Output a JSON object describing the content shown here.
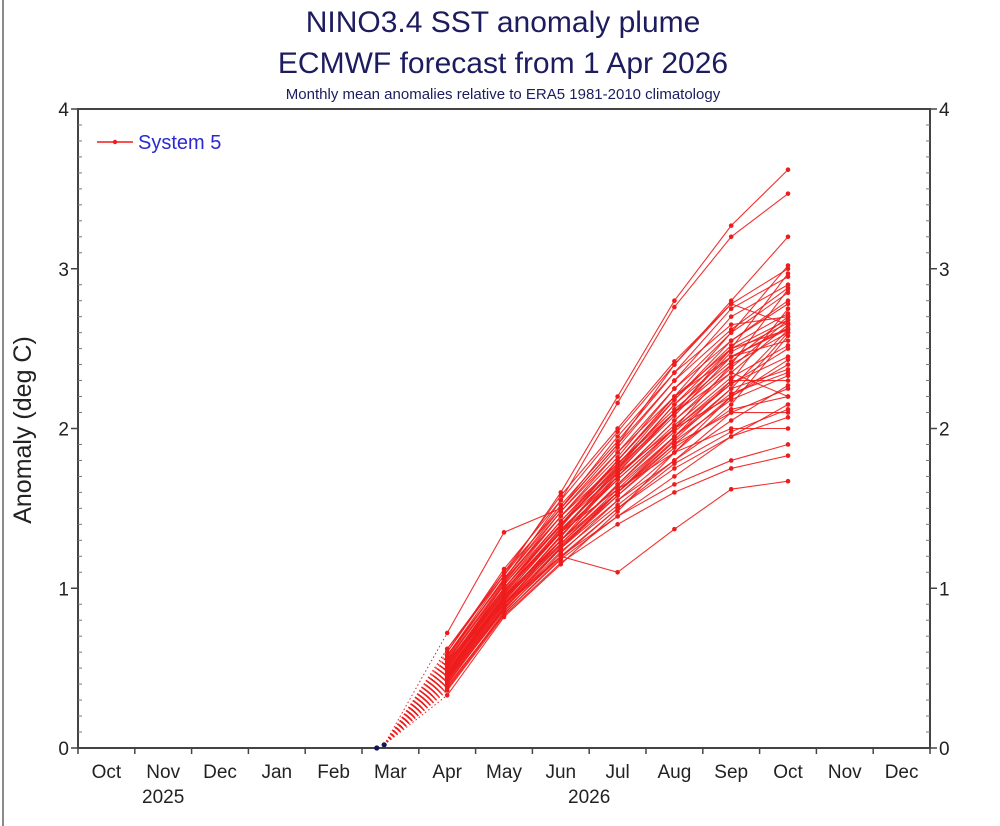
{
  "chart_data": {
    "type": "line",
    "title": "NINO3.4 SST anomaly plume",
    "subtitle": "ECMWF forecast from 1 Apr 2026",
    "note": "Monthly mean anomalies relative to ERA5 1981-2010 climatology",
    "xlabel": "",
    "ylabel": "Anomaly (deg C)",
    "ylim": [
      0,
      4
    ],
    "yticks": [
      "0",
      "1",
      "2",
      "3",
      "4"
    ],
    "months": [
      "Oct",
      "Nov",
      "Dec",
      "Jan",
      "Feb",
      "Mar",
      "Apr",
      "May",
      "Jun",
      "Jul",
      "Aug",
      "Sep",
      "Oct",
      "Nov",
      "Dec"
    ],
    "years": [
      {
        "label": "2025",
        "month_index": 1
      },
      {
        "label": "2026",
        "month_index": 8.5
      }
    ],
    "legend": {
      "label": "System 5",
      "placement": "top-left"
    },
    "colors": {
      "forecast": "#ee1c1c",
      "observed": "#14145a",
      "text": "#1c1c5e",
      "legend_text": "#2a2ad0"
    },
    "observed": [
      {
        "month_index": 4.76,
        "value": 0.0
      },
      {
        "month_index": 4.89,
        "value": 0.02
      }
    ],
    "forecast_months_index": [
      6,
      7,
      8,
      9,
      10,
      11,
      12
    ],
    "series": [
      [
        0.62,
        1.08,
        1.6,
        2.2,
        2.8,
        3.27,
        3.62
      ],
      [
        0.58,
        1.05,
        1.55,
        2.16,
        2.76,
        3.2,
        3.47
      ],
      [
        0.72,
        1.35,
        1.5,
        1.9,
        2.4,
        2.8,
        3.2
      ],
      [
        0.33,
        0.82,
        1.15,
        1.48,
        1.85,
        2.2,
        2.6
      ],
      [
        0.55,
        0.9,
        1.2,
        1.1,
        1.37,
        1.62,
        1.67
      ],
      [
        0.5,
        1.0,
        1.4,
        1.8,
        2.2,
        2.6,
        3.02
      ],
      [
        0.45,
        0.95,
        1.35,
        1.75,
        2.1,
        2.5,
        2.97
      ],
      [
        0.6,
        1.1,
        1.5,
        1.9,
        2.3,
        2.7,
        2.9
      ],
      [
        0.48,
        0.92,
        1.3,
        1.65,
        2.0,
        2.4,
        2.87
      ],
      [
        0.52,
        1.02,
        1.45,
        1.85,
        2.25,
        2.55,
        2.8
      ],
      [
        0.4,
        0.88,
        1.25,
        1.6,
        1.95,
        2.3,
        2.75
      ],
      [
        0.56,
        1.06,
        1.5,
        1.95,
        2.35,
        2.65,
        2.7
      ],
      [
        0.44,
        0.9,
        1.3,
        1.7,
        2.05,
        2.35,
        2.65
      ],
      [
        0.5,
        0.98,
        1.4,
        1.75,
        2.15,
        2.45,
        2.62
      ],
      [
        0.47,
        0.94,
        1.32,
        1.72,
        2.1,
        2.4,
        2.6
      ],
      [
        0.53,
        1.0,
        1.42,
        1.8,
        2.2,
        2.5,
        2.62
      ],
      [
        0.38,
        0.85,
        1.22,
        1.55,
        1.85,
        2.15,
        2.58
      ],
      [
        0.6,
        1.12,
        1.55,
        1.98,
        2.4,
        2.78,
        2.65
      ],
      [
        0.42,
        0.87,
        1.25,
        1.58,
        1.9,
        2.2,
        2.43
      ],
      [
        0.46,
        0.93,
        1.28,
        1.62,
        1.95,
        2.25,
        2.37
      ],
      [
        0.5,
        0.97,
        1.35,
        1.68,
        2.0,
        2.3,
        2.3
      ],
      [
        0.44,
        0.9,
        1.25,
        1.55,
        1.8,
        2.1,
        2.25
      ],
      [
        0.55,
        1.04,
        1.45,
        1.78,
        2.1,
        2.35,
        2.2
      ],
      [
        0.39,
        0.84,
        1.18,
        1.45,
        1.7,
        1.95,
        2.15
      ],
      [
        0.48,
        0.95,
        1.3,
        1.6,
        1.9,
        2.1,
        2.1
      ],
      [
        0.43,
        0.88,
        1.2,
        1.5,
        1.75,
        1.95,
        2.07
      ],
      [
        0.51,
        0.99,
        1.35,
        1.62,
        1.85,
        2.0,
        2.0
      ],
      [
        0.41,
        0.86,
        1.2,
        1.45,
        1.65,
        1.8,
        1.9
      ],
      [
        0.36,
        0.83,
        1.16,
        1.4,
        1.6,
        1.75,
        1.83
      ],
      [
        0.58,
        1.08,
        1.52,
        1.92,
        2.35,
        2.75,
        2.95
      ],
      [
        0.54,
        1.03,
        1.48,
        1.88,
        2.3,
        2.62,
        2.88
      ],
      [
        0.49,
        0.96,
        1.38,
        1.8,
        2.18,
        2.52,
        2.72
      ],
      [
        0.45,
        0.92,
        1.33,
        1.7,
        2.05,
        2.38,
        2.68
      ],
      [
        0.52,
        1.0,
        1.4,
        1.72,
        2.0,
        2.2,
        2.4
      ],
      [
        0.47,
        0.94,
        1.3,
        1.65,
        1.98,
        2.28,
        2.5
      ],
      [
        0.57,
        1.06,
        1.48,
        1.85,
        2.2,
        2.45,
        2.55
      ],
      [
        0.43,
        0.9,
        1.28,
        1.6,
        1.92,
        2.18,
        2.33
      ],
      [
        0.5,
        0.98,
        1.37,
        1.7,
        2.02,
        2.32,
        2.52
      ],
      [
        0.4,
        0.87,
        1.23,
        1.52,
        1.8,
        2.05,
        2.27
      ],
      [
        0.55,
        1.02,
        1.42,
        1.78,
        2.12,
        2.42,
        2.7
      ],
      [
        0.46,
        0.93,
        1.33,
        1.68,
        2.0,
        2.28,
        2.45
      ],
      [
        0.62,
        1.1,
        1.58,
        2.0,
        2.42,
        2.78,
        3.0
      ],
      [
        0.48,
        0.95,
        1.35,
        1.73,
        2.08,
        2.45,
        2.63
      ],
      [
        0.53,
        1.0,
        1.4,
        1.76,
        2.15,
        2.5,
        2.68
      ],
      [
        0.44,
        0.91,
        1.27,
        1.58,
        1.88,
        2.12,
        2.2
      ],
      [
        0.58,
        1.05,
        1.45,
        1.82,
        2.25,
        2.6,
        2.85
      ],
      [
        0.42,
        0.89,
        1.26,
        1.6,
        1.93,
        2.25,
        2.62
      ],
      [
        0.5,
        0.97,
        1.36,
        1.74,
        2.1,
        2.48,
        2.66
      ],
      [
        0.45,
        0.92,
        1.3,
        1.64,
        1.95,
        2.22,
        2.35
      ],
      [
        0.52,
        1.0,
        1.39,
        1.77,
        2.18,
        2.55,
        2.78
      ],
      [
        0.37,
        0.84,
        1.19,
        1.5,
        1.78,
        1.98,
        2.12
      ]
    ]
  }
}
